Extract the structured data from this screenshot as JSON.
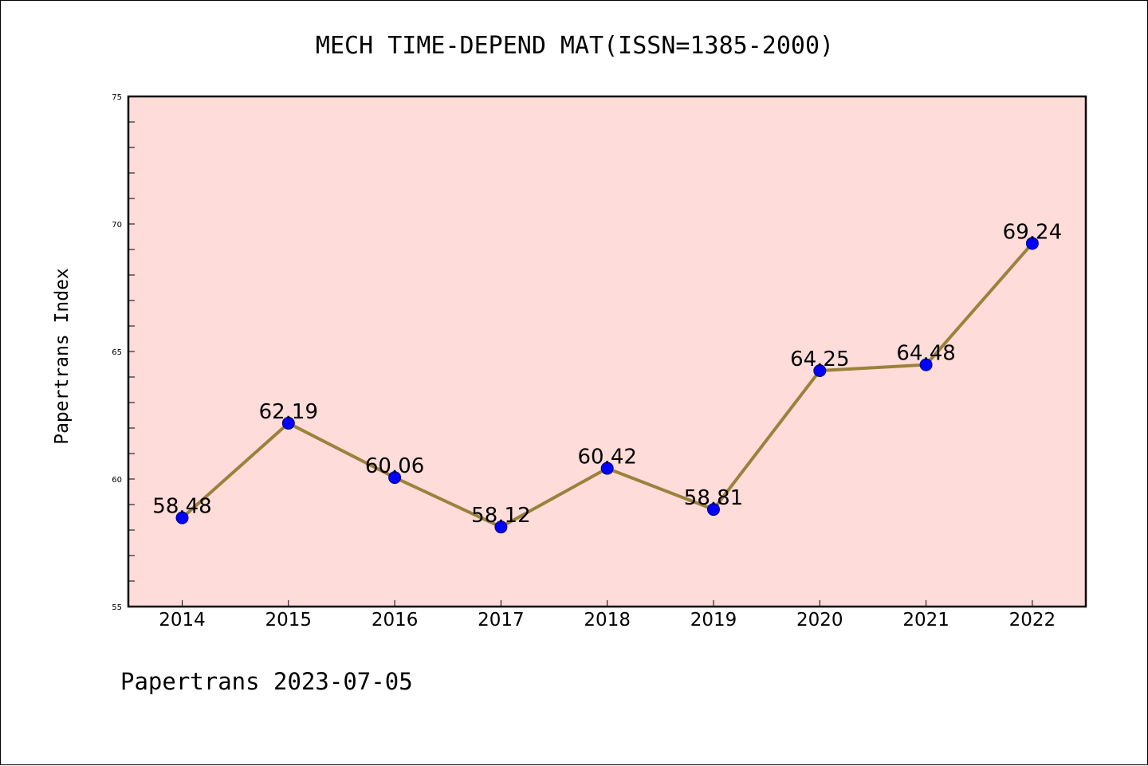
{
  "chart_data": {
    "type": "line",
    "title": "MECH TIME-DEPEND MAT(ISSN=1385-2000)",
    "xlabel": "",
    "ylabel": "Papertrans Index",
    "footer": "Papertrans 2023-07-05",
    "categories": [
      "2014",
      "2015",
      "2016",
      "2017",
      "2018",
      "2019",
      "2020",
      "2021",
      "2022"
    ],
    "series": [
      {
        "values": [
          58.48,
          62.19,
          60.06,
          58.12,
          60.42,
          58.81,
          64.25,
          64.48,
          69.24
        ],
        "labels": [
          "58.48",
          "62.19",
          "60.06",
          "58.12",
          "60.42",
          "58.81",
          "64.25",
          "64.48",
          "69.24"
        ]
      }
    ],
    "ylim": [
      55,
      75
    ],
    "yticks": [
      "55",
      "60",
      "65",
      "70",
      "75"
    ],
    "y_minor_step": 1,
    "grid": false,
    "colors": {
      "plot_background": "#fddcd9",
      "line": "#9b823c",
      "marker": "#0000ff",
      "axis": "#000000"
    }
  }
}
